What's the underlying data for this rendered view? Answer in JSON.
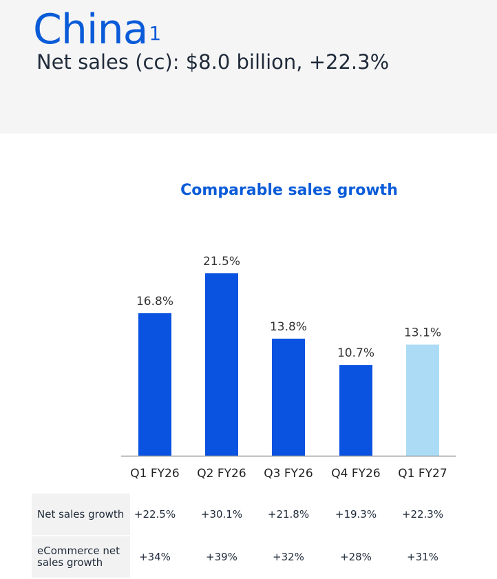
{
  "header": {
    "region": "China",
    "footnote_marker": "1",
    "subtitle": "Net sales (cc): $8.0 billion, +22.3%"
  },
  "chart_data": {
    "type": "bar",
    "title": "Comparable sales growth",
    "categories": [
      "Q1 FY26",
      "Q2 FY26",
      "Q3 FY26",
      "Q4 FY26",
      "Q1 FY27"
    ],
    "values": [
      16.8,
      21.5,
      13.8,
      10.7,
      13.1
    ],
    "data_labels": [
      "16.8%",
      "21.5%",
      "13.8%",
      "10.7%",
      "13.1%"
    ],
    "ylim": [
      0,
      21.5
    ],
    "grid": false,
    "colors": [
      "#0a52e0",
      "#0a52e0",
      "#0a52e0",
      "#0a52e0",
      "#acdcf5"
    ]
  },
  "table": {
    "rows": [
      {
        "label": "Net sales growth",
        "values": [
          "+22.5%",
          "+30.1%",
          "+21.8%",
          "+19.3%",
          "+22.3%"
        ]
      },
      {
        "label": "eCommerce net sales growth",
        "values": [
          "+34%",
          "+39%",
          "+32%",
          "+28%",
          "+31%"
        ]
      }
    ]
  }
}
